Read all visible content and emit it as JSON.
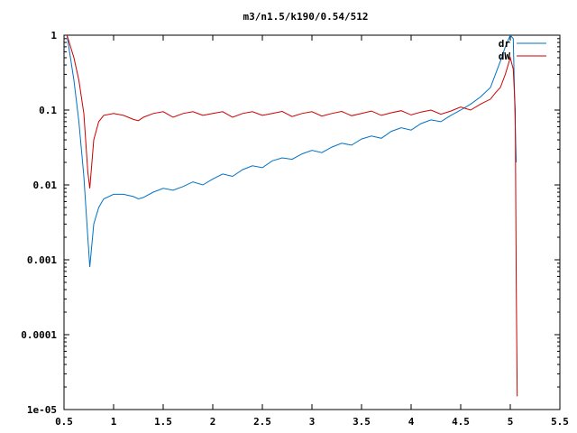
{
  "chart_data": {
    "type": "line",
    "title": "m3/n1.5/k190/0.54/512",
    "xlabel": "",
    "ylabel": "",
    "xlim": [
      0.5,
      5.5
    ],
    "ylim": [
      1e-05,
      1
    ],
    "yscale": "log",
    "grid": false,
    "legend_position": "top-right",
    "x_ticks": [
      0.5,
      1,
      1.5,
      2,
      2.5,
      3,
      3.5,
      4,
      4.5,
      5,
      5.5
    ],
    "x_tick_labels": [
      "0.5",
      "1",
      "1.5",
      "2",
      "2.5",
      "3",
      "3.5",
      "4",
      "4.5",
      "5",
      "5.5"
    ],
    "y_ticks": [
      1,
      0.1,
      0.01,
      0.001,
      0.0001,
      1e-05
    ],
    "y_tick_labels": [
      "1",
      "0.1",
      "0.01",
      "0.001",
      "0.0001",
      "1e-05"
    ],
    "series": [
      {
        "name": "dr",
        "color": "#0072c6",
        "x": [
          0.53,
          0.6,
          0.65,
          0.7,
          0.74,
          0.76,
          0.8,
          0.85,
          0.9,
          1.0,
          1.1,
          1.2,
          1.25,
          1.3,
          1.4,
          1.5,
          1.6,
          1.7,
          1.8,
          1.9,
          2.0,
          2.1,
          2.2,
          2.3,
          2.4,
          2.5,
          2.6,
          2.7,
          2.8,
          2.9,
          3.0,
          3.1,
          3.2,
          3.3,
          3.4,
          3.5,
          3.6,
          3.7,
          3.8,
          3.9,
          4.0,
          4.1,
          4.2,
          4.3,
          4.4,
          4.5,
          4.6,
          4.7,
          4.8,
          4.85,
          4.9,
          4.95,
          5.0,
          5.03,
          5.05,
          5.06
        ],
        "y": [
          1.0,
          0.25,
          0.07,
          0.013,
          0.002,
          0.0008,
          0.003,
          0.005,
          0.0065,
          0.0075,
          0.0075,
          0.007,
          0.0065,
          0.0068,
          0.008,
          0.009,
          0.0085,
          0.0095,
          0.011,
          0.01,
          0.012,
          0.014,
          0.013,
          0.016,
          0.018,
          0.017,
          0.021,
          0.023,
          0.022,
          0.026,
          0.029,
          0.027,
          0.032,
          0.036,
          0.034,
          0.041,
          0.045,
          0.042,
          0.052,
          0.058,
          0.054,
          0.066,
          0.074,
          0.07,
          0.085,
          0.1,
          0.12,
          0.15,
          0.2,
          0.3,
          0.45,
          0.7,
          1.0,
          0.9,
          0.06,
          0.02
        ]
      },
      {
        "name": "dW",
        "color": "#cc0000",
        "x": [
          0.53,
          0.6,
          0.65,
          0.7,
          0.74,
          0.76,
          0.8,
          0.85,
          0.9,
          1.0,
          1.1,
          1.2,
          1.25,
          1.3,
          1.4,
          1.5,
          1.6,
          1.7,
          1.8,
          1.9,
          2.0,
          2.1,
          2.2,
          2.3,
          2.4,
          2.5,
          2.6,
          2.7,
          2.8,
          2.9,
          3.0,
          3.1,
          3.2,
          3.3,
          3.4,
          3.5,
          3.6,
          3.7,
          3.8,
          3.9,
          4.0,
          4.1,
          4.2,
          4.3,
          4.4,
          4.5,
          4.6,
          4.7,
          4.8,
          4.85,
          4.9,
          4.95,
          5.0,
          5.03,
          5.05,
          5.06,
          5.07
        ],
        "y": [
          1.0,
          0.5,
          0.25,
          0.09,
          0.015,
          0.009,
          0.04,
          0.07,
          0.085,
          0.09,
          0.085,
          0.075,
          0.072,
          0.08,
          0.09,
          0.095,
          0.08,
          0.09,
          0.095,
          0.085,
          0.09,
          0.095,
          0.08,
          0.09,
          0.095,
          0.085,
          0.09,
          0.096,
          0.082,
          0.09,
          0.095,
          0.083,
          0.09,
          0.096,
          0.084,
          0.09,
          0.097,
          0.085,
          0.092,
          0.098,
          0.086,
          0.094,
          0.1,
          0.088,
          0.097,
          0.11,
          0.1,
          0.12,
          0.14,
          0.17,
          0.2,
          0.3,
          0.5,
          0.35,
          0.1,
          0.0005,
          1.5e-05
        ]
      }
    ]
  }
}
